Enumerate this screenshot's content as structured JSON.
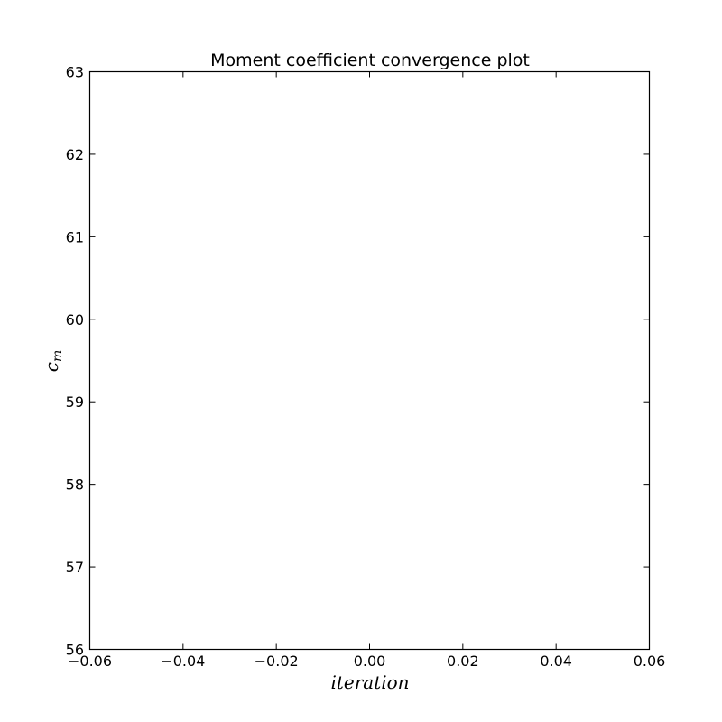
{
  "chart_data": {
    "type": "line",
    "title": "Moment coefficient convergence plot",
    "xlabel": "iteration",
    "ylabel": "c",
    "ylabel_subscript": "m",
    "xlim": [
      -0.06,
      0.06
    ],
    "ylim": [
      56,
      63
    ],
    "x_ticks": [
      -0.06,
      -0.04,
      -0.02,
      0.0,
      0.02,
      0.04,
      0.06
    ],
    "x_tick_labels": [
      "−0.06",
      "−0.04",
      "−0.02",
      "0.00",
      "0.02",
      "0.04",
      "0.06"
    ],
    "y_ticks": [
      56,
      57,
      58,
      59,
      60,
      61,
      62,
      63
    ],
    "y_tick_labels": [
      "56",
      "57",
      "58",
      "59",
      "60",
      "61",
      "62",
      "63"
    ],
    "grid": false,
    "series": []
  }
}
